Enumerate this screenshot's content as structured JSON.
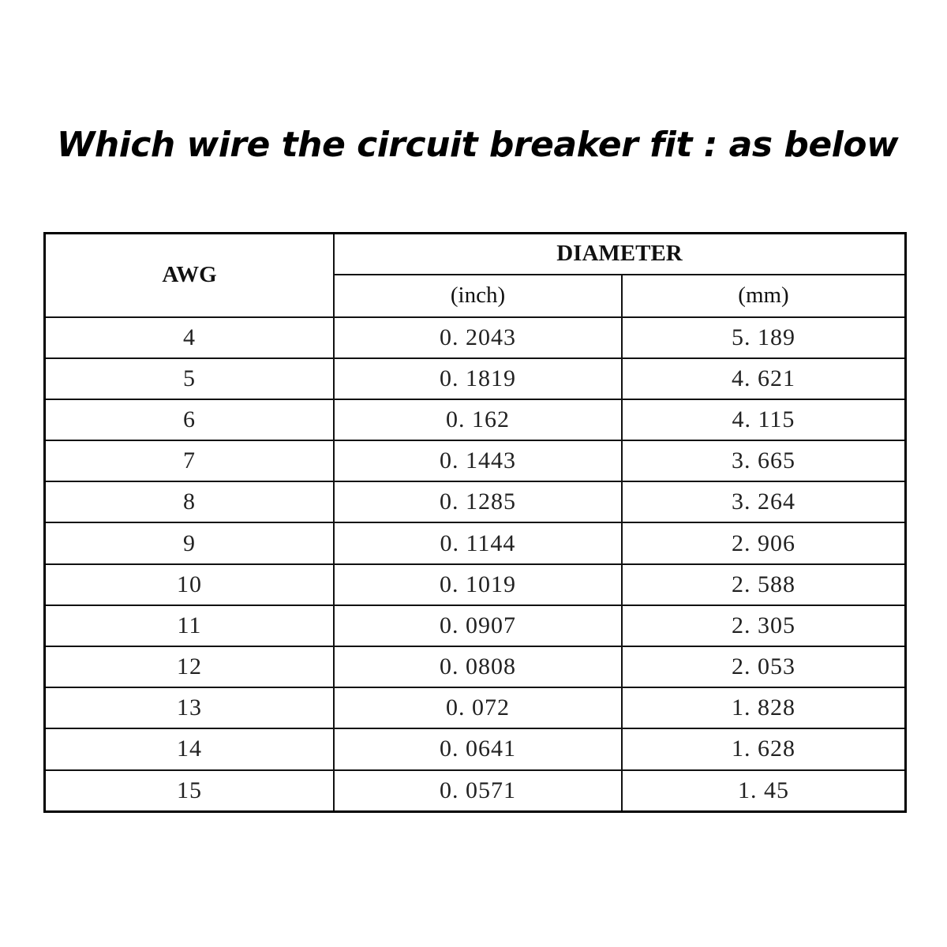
{
  "title": "Which wire the circuit breaker fit : as below",
  "table": {
    "headers": {
      "awg": "AWG",
      "diameter": "DIAMETER",
      "inch": "(inch)",
      "mm": "(mm)"
    },
    "rows": [
      {
        "awg": "4",
        "inch": "0. 2043",
        "mm": "5. 189"
      },
      {
        "awg": "5",
        "inch": "0. 1819",
        "mm": "4. 621"
      },
      {
        "awg": "6",
        "inch": "0. 162",
        "mm": "4. 115"
      },
      {
        "awg": "7",
        "inch": "0. 1443",
        "mm": "3. 665"
      },
      {
        "awg": "8",
        "inch": "0. 1285",
        "mm": "3. 264"
      },
      {
        "awg": "9",
        "inch": "0. 1144",
        "mm": "2. 906"
      },
      {
        "awg": "10",
        "inch": "0. 1019",
        "mm": "2. 588"
      },
      {
        "awg": "11",
        "inch": "0. 0907",
        "mm": "2. 305"
      },
      {
        "awg": "12",
        "inch": "0. 0808",
        "mm": "2. 053"
      },
      {
        "awg": "13",
        "inch": "0. 072",
        "mm": "1. 828"
      },
      {
        "awg": "14",
        "inch": "0. 0641",
        "mm": "1. 628"
      },
      {
        "awg": "15",
        "inch": "0. 0571",
        "mm": "1. 45"
      }
    ]
  }
}
